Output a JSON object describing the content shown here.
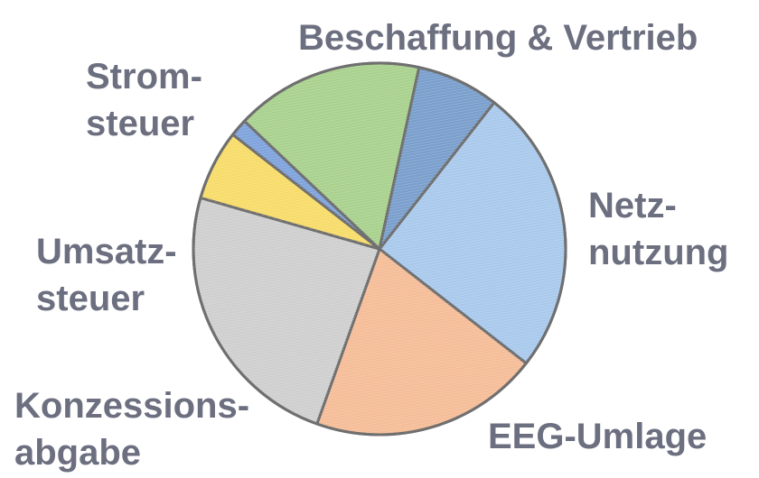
{
  "chart_data": {
    "type": "pie",
    "slices": [
      {
        "label_lines": [
          "Beschaffung & Vertrieb"
        ],
        "value": 24.5,
        "color": "#a9c9ec"
      },
      {
        "label_lines": [
          "Netz-",
          "nutzung"
        ],
        "value": 19.5,
        "color": "#f5bd98"
      },
      {
        "label_lines": [
          "EEG-Umlage"
        ],
        "value": 23.5,
        "color": "#cfcfcf"
      },
      {
        "label_lines": [
          "Konzessions-",
          "abgabe"
        ],
        "value": 6.0,
        "color": "#f7dc6a"
      },
      {
        "label_lines": [
          "",
          ""
        ],
        "value": 1.5,
        "color": "#7fa3dc"
      },
      {
        "label_lines": [
          "Umsatz-",
          "steuer"
        ],
        "value": 16.0,
        "color": "#a9d18e"
      },
      {
        "label_lines": [
          "Strom-",
          "steuer"
        ],
        "value": 7.0,
        "color": "#7a9fcc"
      }
    ],
    "start_angle_deg": 38,
    "direction": "clockwise",
    "edge_color": "#6f6f6f",
    "label_color": "#6c6f7f",
    "legend": "none",
    "title": ""
  }
}
